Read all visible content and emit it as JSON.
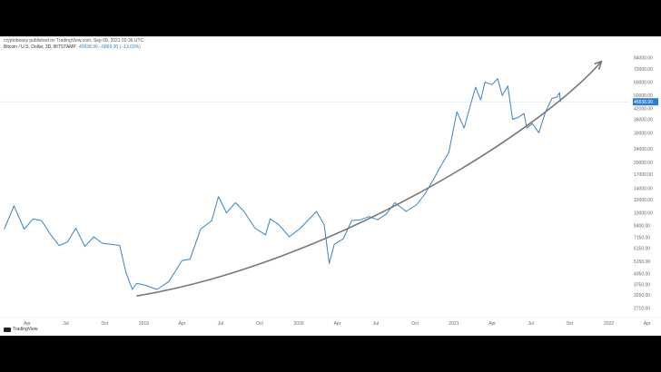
{
  "header": {
    "publisher": "cryptobeasy published on TradingView.com, Sep 09, 2021 02:36 UTC",
    "symbol": "Bitcoin / U.S. Dollar, 3D, BITSTAMP",
    "last_values": "45838.90  −6869.30 (−13.03%)"
  },
  "brand": {
    "name": "TradingView"
  },
  "colors": {
    "line": "#3b82c4",
    "arrow": "#777777",
    "price_tag": "#2f7bd1"
  },
  "chart_data": {
    "type": "line",
    "title": "",
    "y_scale": "log",
    "ylim": [
      2500,
      90000
    ],
    "current_price_label": "45838.90",
    "ytick_labels": [
      "84000.00",
      "72000.00",
      "60000.00",
      "50000.00",
      "42000.00",
      "36000.00",
      "30000.00",
      "24000.00",
      "20000.00",
      "17000.00",
      "14000.00",
      "12000.00",
      "10000.00",
      "8400.00",
      "7150.00",
      "6150.00",
      "5150.00",
      "4350.00",
      "3750.00",
      "3250.00",
      "2710.00"
    ],
    "xtick_labels": [
      "Apr",
      "Jul",
      "Oct",
      "2019",
      "Apr",
      "Jul",
      "Oct",
      "2020",
      "Apr",
      "Jul",
      "Oct",
      "2021",
      "Apr",
      "Jul",
      "Oct",
      "2022",
      "Apr"
    ],
    "series": [
      {
        "x": [
          "2018-02-06",
          "2018-03-01",
          "2018-03-25",
          "2018-04-15",
          "2018-05-05",
          "2018-05-25",
          "2018-06-15",
          "2018-07-05",
          "2018-07-25",
          "2018-08-15",
          "2018-09-05",
          "2018-09-25",
          "2018-10-15",
          "2018-11-05",
          "2018-11-20",
          "2018-12-05",
          "2018-12-15",
          "2019-01-05",
          "2019-02-01",
          "2019-03-01",
          "2019-04-01",
          "2019-04-20",
          "2019-05-15",
          "2019-06-10",
          "2019-06-26",
          "2019-07-15",
          "2019-08-05",
          "2019-08-25",
          "2019-09-20",
          "2019-10-15",
          "2019-10-26",
          "2019-11-15",
          "2019-12-10",
          "2020-01-05",
          "2020-02-12",
          "2020-03-01",
          "2020-03-13",
          "2020-03-25",
          "2020-04-15",
          "2020-05-05",
          "2020-05-25",
          "2020-06-15",
          "2020-07-05",
          "2020-07-25",
          "2020-08-15",
          "2020-09-10",
          "2020-10-05",
          "2020-10-25",
          "2020-11-15",
          "2020-12-01",
          "2020-12-20",
          "2021-01-08",
          "2021-01-25",
          "2021-02-10",
          "2021-02-21",
          "2021-03-05",
          "2021-03-15",
          "2021-04-01",
          "2021-04-14",
          "2021-04-25",
          "2021-05-08",
          "2021-05-19",
          "2021-06-01",
          "2021-06-15",
          "2021-06-22",
          "2021-07-05",
          "2021-07-20",
          "2021-08-05",
          "2021-08-20",
          "2021-09-01",
          "2021-09-07",
          "2021-09-09"
        ],
        "y": [
          8000,
          11000,
          8000,
          9200,
          9000,
          7500,
          6400,
          6700,
          8100,
          6300,
          7200,
          6600,
          6500,
          6400,
          4400,
          3500,
          3800,
          3700,
          3500,
          3900,
          5200,
          5300,
          8000,
          9000,
          12500,
          10000,
          11500,
          10200,
          8100,
          7400,
          9200,
          8500,
          7200,
          8100,
          10200,
          8500,
          5000,
          6500,
          7000,
          9000,
          9100,
          9500,
          9100,
          9800,
          11500,
          10200,
          11200,
          13000,
          16000,
          19000,
          23000,
          40000,
          32000,
          45000,
          56000,
          47000,
          60000,
          58000,
          63000,
          50000,
          57000,
          36000,
          37000,
          39000,
          32000,
          34000,
          30000,
          40000,
          48000,
          49000,
          52000,
          45838.9
        ]
      }
    ],
    "annotations": [
      {
        "type": "trend-arrow",
        "points": [
          [
            "2018-12-15",
            3200
          ],
          [
            "2020-03-13",
            4950
          ],
          [
            "2021-07-20",
            29800
          ],
          [
            "2021-12-15",
            80000
          ]
        ]
      }
    ]
  }
}
